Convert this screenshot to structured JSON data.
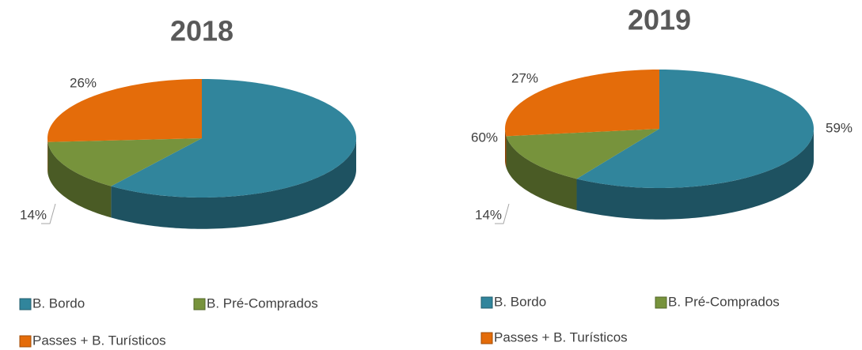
{
  "chart_data": [
    {
      "type": "pie",
      "title": "2018",
      "categories": [
        "B. Bordo",
        "B. Pré-Comprados",
        "Passes + B. Turísticos"
      ],
      "values": [
        60,
        14,
        26
      ],
      "value_labels": [
        "60%",
        "14%",
        "26%"
      ],
      "colors": [
        "#31859c",
        "#77933c",
        "#e46c0a"
      ]
    },
    {
      "type": "pie",
      "title": "2019",
      "categories": [
        "B. Bordo",
        "B. Pré-Comprados",
        "Passes + B. Turísticos"
      ],
      "values": [
        59,
        14,
        27
      ],
      "value_labels": [
        "59%",
        "14%",
        "27%"
      ],
      "colors": [
        "#31859c",
        "#77933c",
        "#e46c0a"
      ]
    }
  ]
}
